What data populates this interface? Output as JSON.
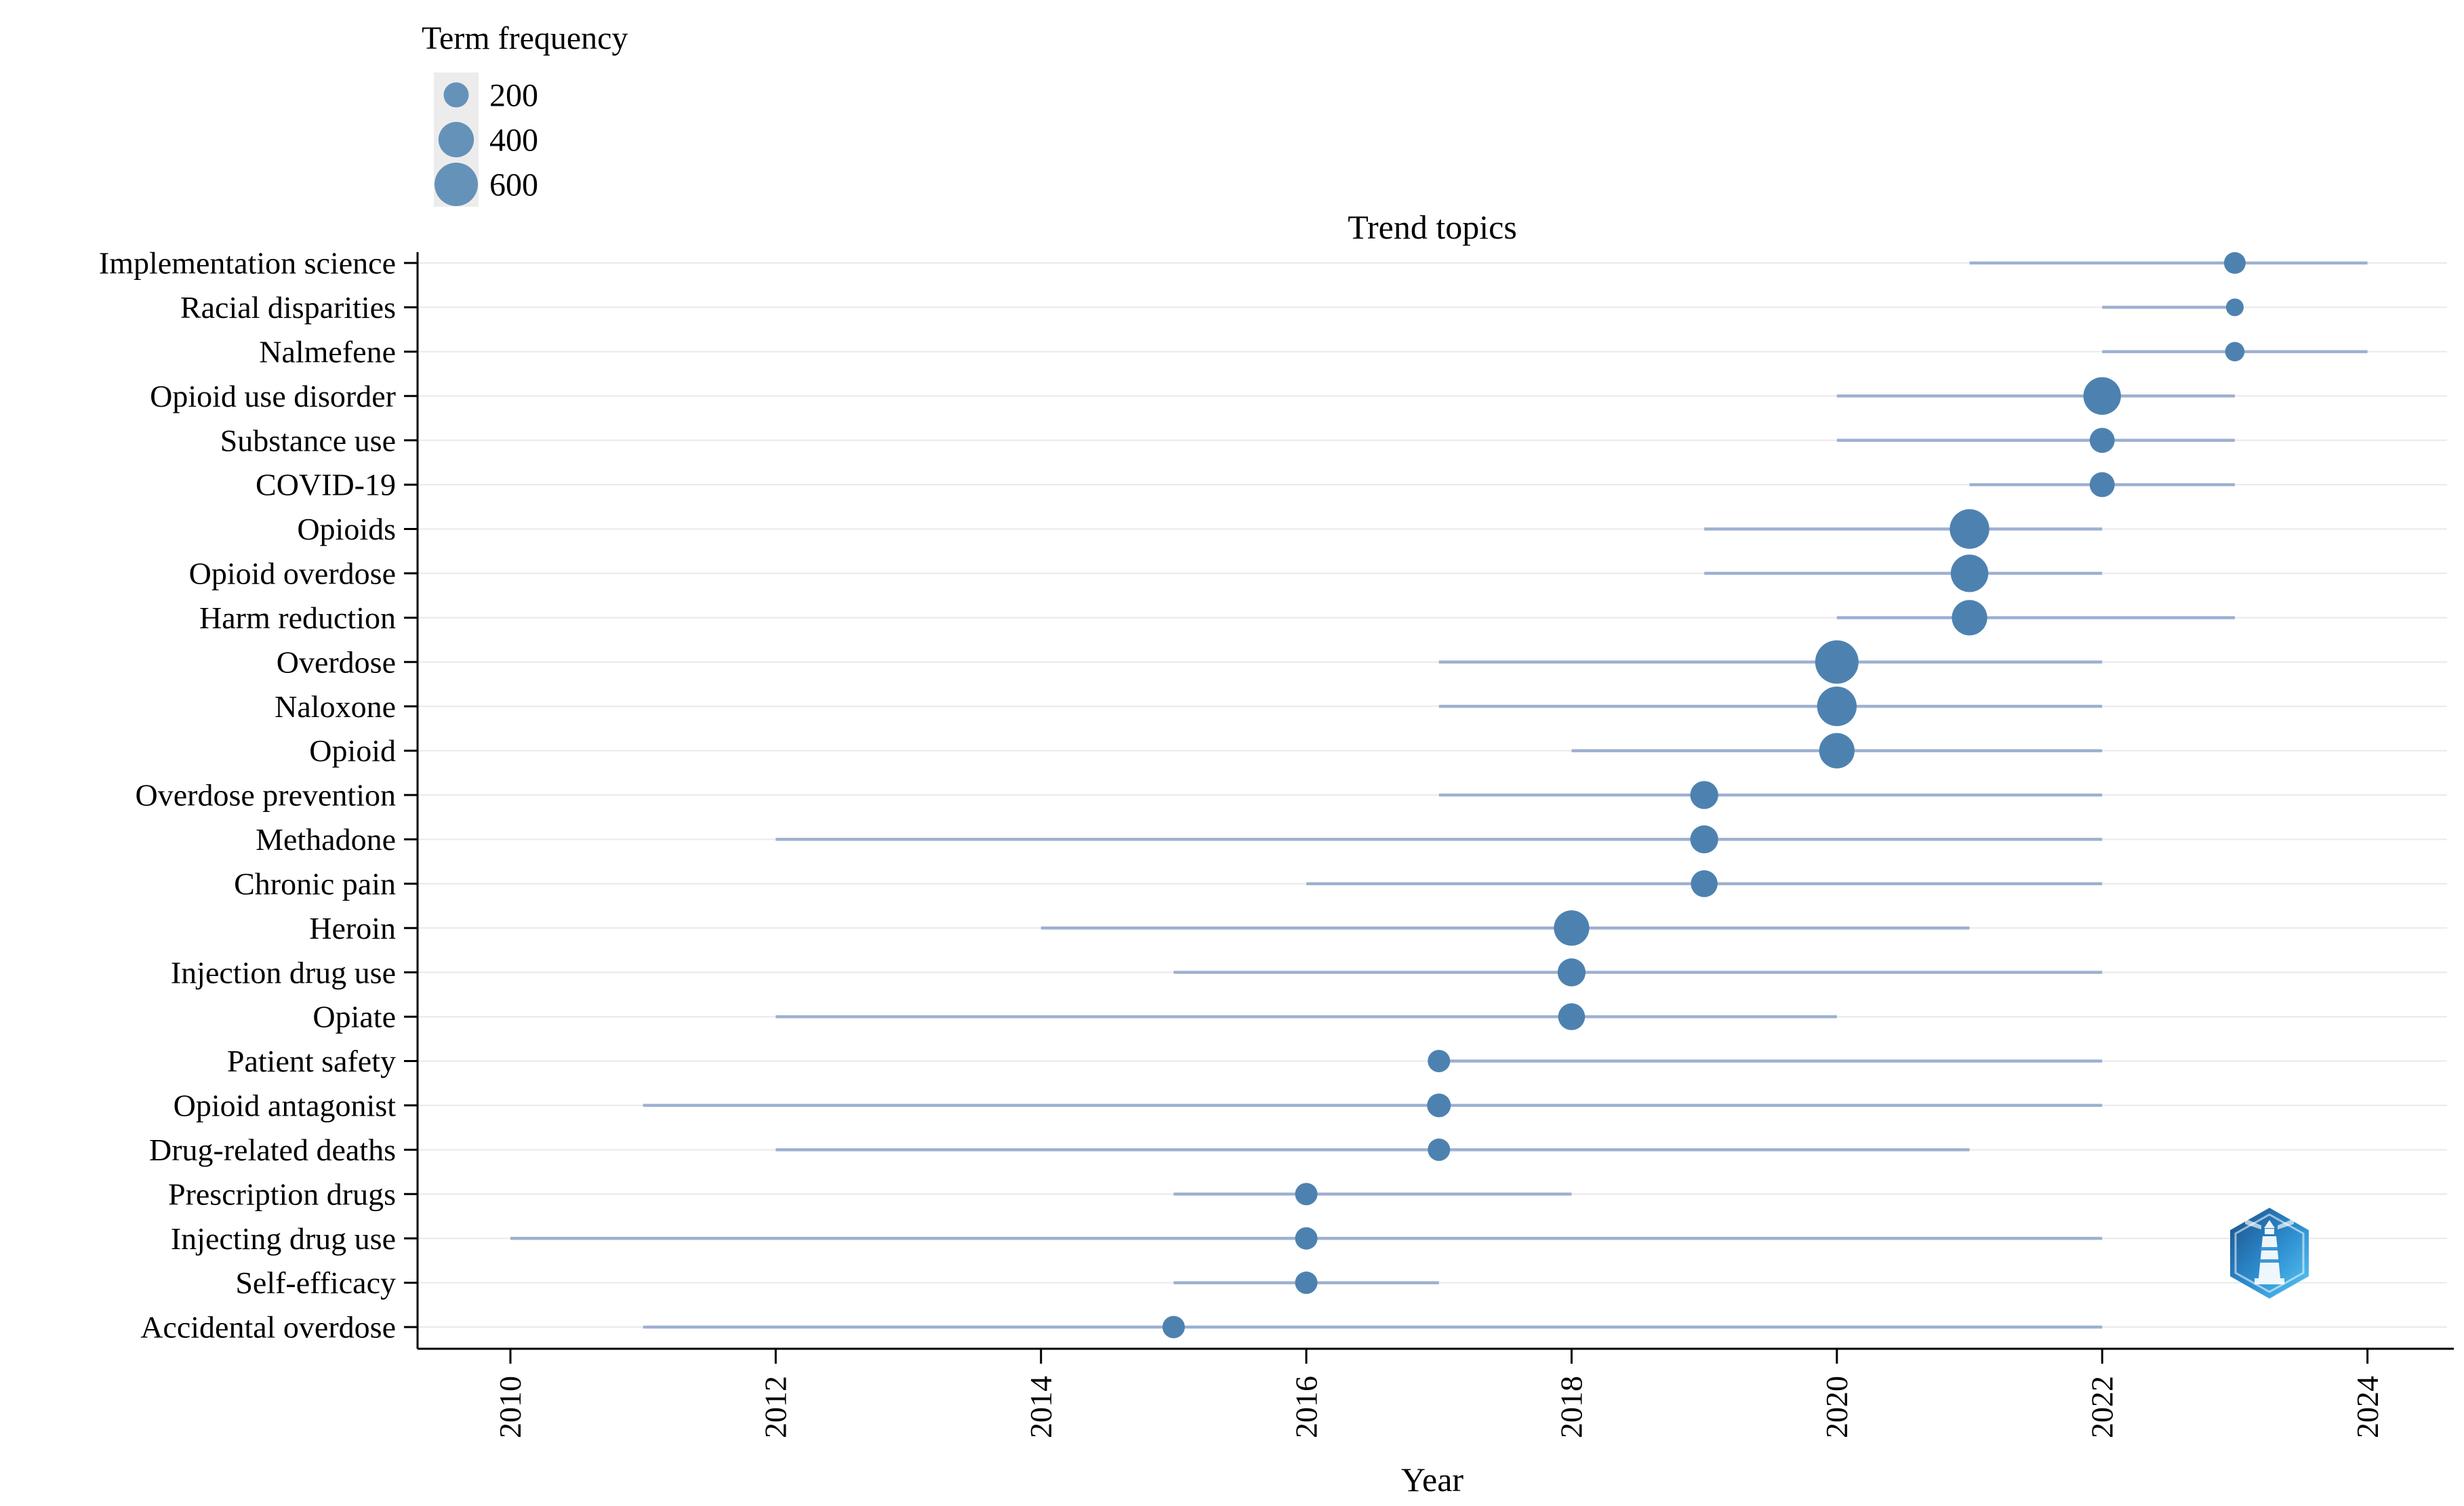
{
  "figure": {
    "title": "Trend topics",
    "xlabel": "Year"
  },
  "colors": {
    "dot": "#4d82b0",
    "line": "#8ea4cb",
    "grid": "#e9e9e9",
    "axis": "#000000",
    "legend_key_bg": "#ececec",
    "logo_dark_blue": "#1b4f8a",
    "logo_light_blue": "#5bc8f5"
  },
  "chart_data": {
    "type": "scatter",
    "title": "Trend topics",
    "xlabel": "Year",
    "ylabel": "",
    "grid": "horizontal-only",
    "legend_position": "top-left",
    "size_legend": {
      "title": "Term frequency",
      "values": [
        200,
        400,
        600
      ]
    },
    "x_axis_ticks": [
      2010,
      2012,
      2014,
      2016,
      2018,
      2020,
      2022,
      2024
    ],
    "xlim": [
      2009.3,
      2024.6
    ],
    "terms": [
      {
        "label": "Implementation science",
        "year_q1": 2021,
        "year_median": 2023,
        "year_q3": 2024,
        "term_frequency": 150
      },
      {
        "label": "Racial disparities",
        "year_q1": 2022,
        "year_median": 2023,
        "year_q3": 2023,
        "term_frequency": 100
      },
      {
        "label": "Nalmefene",
        "year_q1": 2022,
        "year_median": 2023,
        "year_q3": 2024,
        "term_frequency": 120
      },
      {
        "label": "Opioid use disorder",
        "year_q1": 2020,
        "year_median": 2022,
        "year_q3": 2023,
        "term_frequency": 450
      },
      {
        "label": "Substance use",
        "year_q1": 2020,
        "year_median": 2022,
        "year_q3": 2023,
        "term_frequency": 200
      },
      {
        "label": "COVID-19",
        "year_q1": 2021,
        "year_median": 2022,
        "year_q3": 2023,
        "term_frequency": 200
      },
      {
        "label": "Opioids",
        "year_q1": 2019,
        "year_median": 2021,
        "year_q3": 2022,
        "term_frequency": 500
      },
      {
        "label": "Opioid overdose",
        "year_q1": 2019,
        "year_median": 2021,
        "year_q3": 2022,
        "term_frequency": 450
      },
      {
        "label": "Harm reduction",
        "year_q1": 2020,
        "year_median": 2021,
        "year_q3": 2023,
        "term_frequency": 400
      },
      {
        "label": "Overdose",
        "year_q1": 2017,
        "year_median": 2020,
        "year_q3": 2022,
        "term_frequency": 600
      },
      {
        "label": "Naloxone",
        "year_q1": 2017,
        "year_median": 2020,
        "year_q3": 2022,
        "term_frequency": 500
      },
      {
        "label": "Opioid",
        "year_q1": 2018,
        "year_median": 2020,
        "year_q3": 2022,
        "term_frequency": 400
      },
      {
        "label": "Overdose prevention",
        "year_q1": 2017,
        "year_median": 2019,
        "year_q3": 2022,
        "term_frequency": 250
      },
      {
        "label": "Methadone",
        "year_q1": 2012,
        "year_median": 2019,
        "year_q3": 2022,
        "term_frequency": 250
      },
      {
        "label": "Chronic pain",
        "year_q1": 2016,
        "year_median": 2019,
        "year_q3": 2022,
        "term_frequency": 230
      },
      {
        "label": "Heroin",
        "year_q1": 2014,
        "year_median": 2018,
        "year_q3": 2021,
        "term_frequency": 400
      },
      {
        "label": "Injection drug use",
        "year_q1": 2015,
        "year_median": 2018,
        "year_q3": 2022,
        "term_frequency": 250
      },
      {
        "label": "Opiate",
        "year_q1": 2012,
        "year_median": 2018,
        "year_q3": 2020,
        "term_frequency": 230
      },
      {
        "label": "Patient safety",
        "year_q1": 2017,
        "year_median": 2017,
        "year_q3": 2022,
        "term_frequency": 160
      },
      {
        "label": "Opioid antagonist",
        "year_q1": 2011,
        "year_median": 2017,
        "year_q3": 2022,
        "term_frequency": 180
      },
      {
        "label": "Drug-related deaths",
        "year_q1": 2012,
        "year_median": 2017,
        "year_q3": 2021,
        "term_frequency": 160
      },
      {
        "label": "Prescription drugs",
        "year_q1": 2015,
        "year_median": 2016,
        "year_q3": 2018,
        "term_frequency": 160
      },
      {
        "label": "Injecting drug use",
        "year_q1": 2010,
        "year_median": 2016,
        "year_q3": 2022,
        "term_frequency": 160
      },
      {
        "label": "Self-efficacy",
        "year_q1": 2015,
        "year_median": 2016,
        "year_q3": 2017,
        "term_frequency": 160
      },
      {
        "label": "Accidental overdose",
        "year_q1": 2011,
        "year_median": 2015,
        "year_q3": 2022,
        "term_frequency": 160
      }
    ]
  }
}
